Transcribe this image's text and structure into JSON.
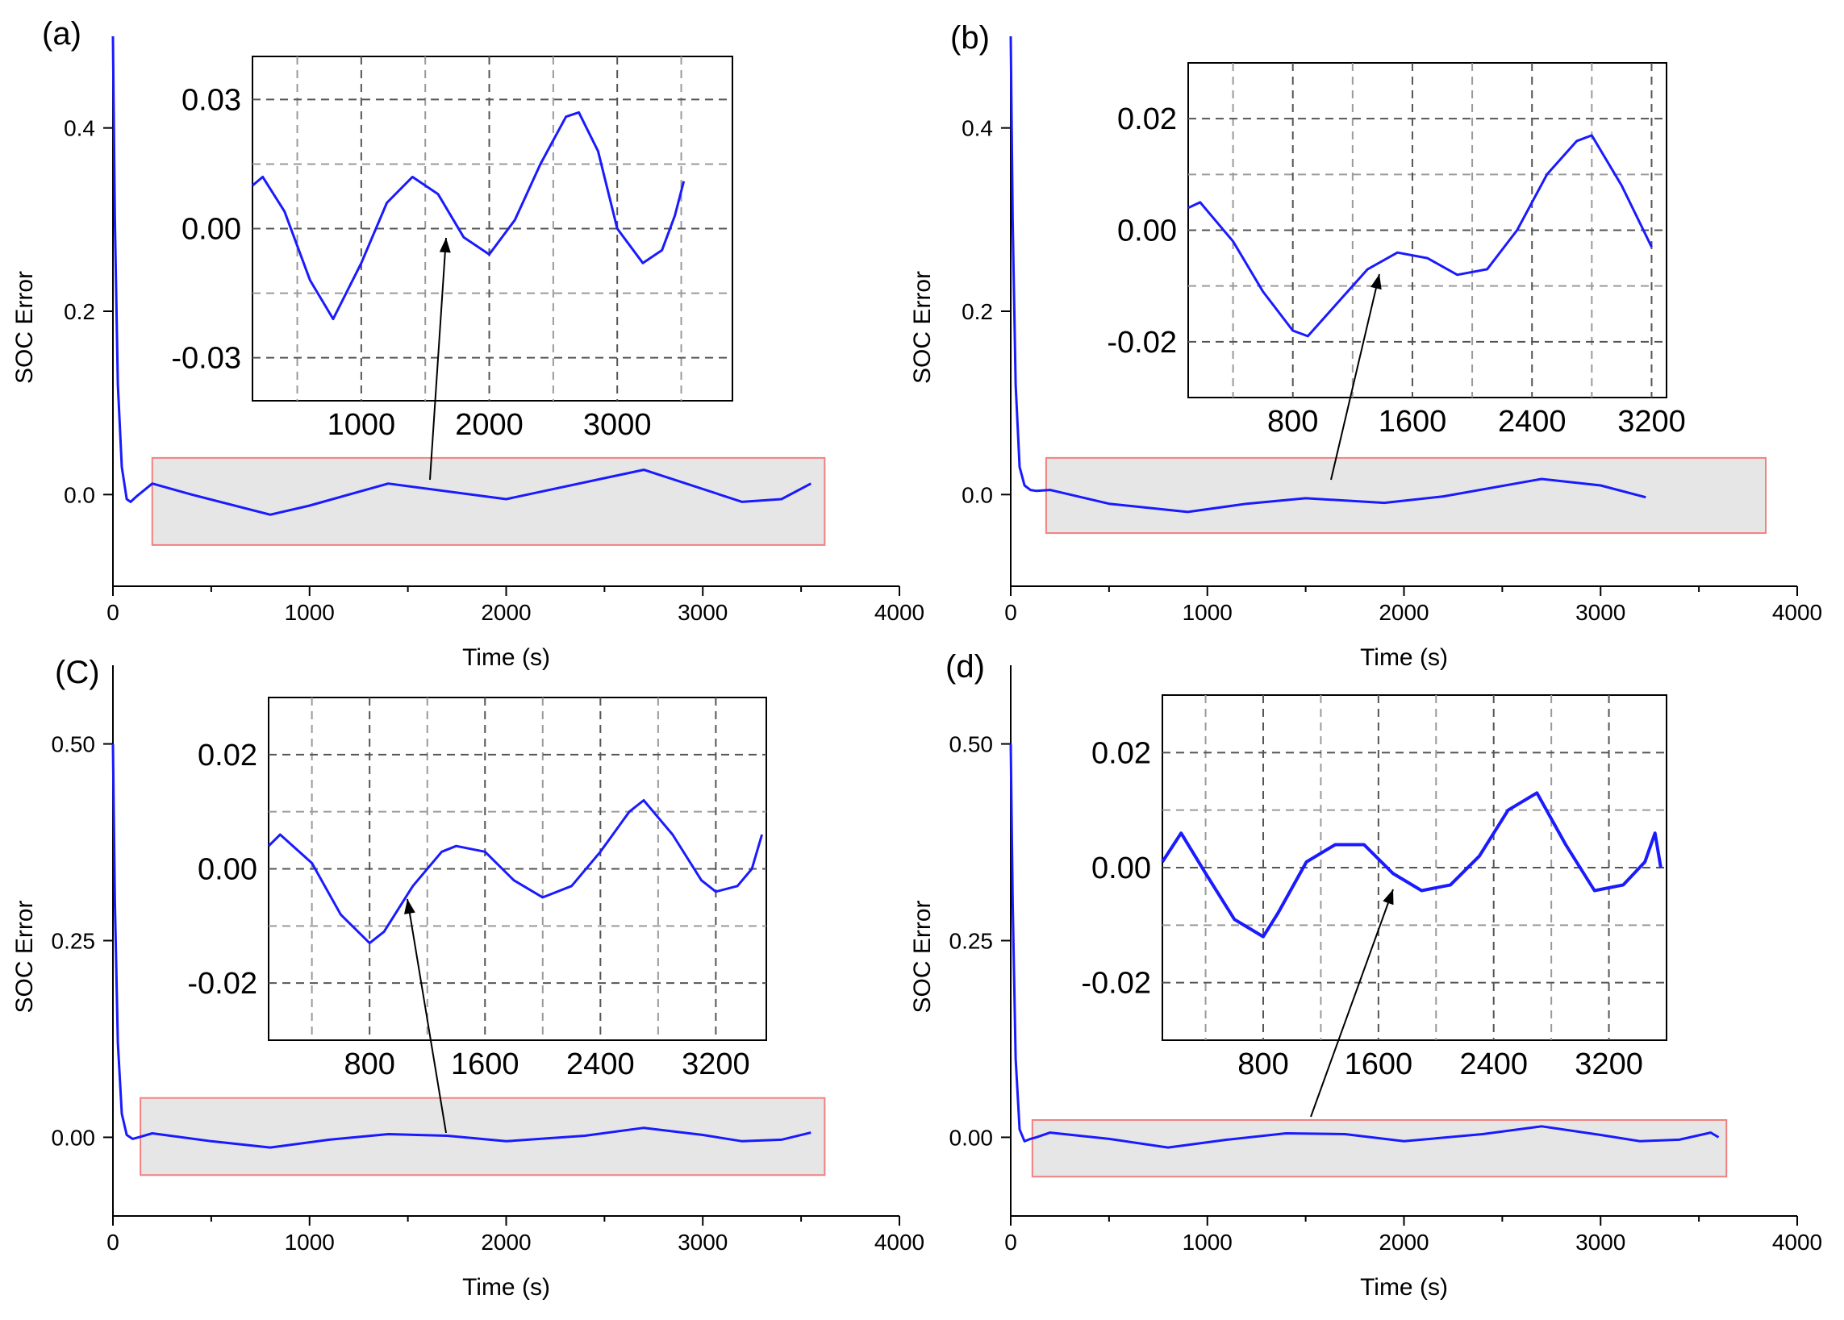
{
  "figure": {
    "colors": {
      "series": "#1a1aff",
      "highlight_fill": "#e6e6e6",
      "highlight_stroke": "#f08080",
      "grid": "#555555",
      "arrow": "#000000"
    }
  },
  "chart_data": [
    {
      "panel": "(a)",
      "type": "line",
      "xlabel": "Time (s)",
      "ylabel": "SOC Error",
      "xlim": [
        0,
        4000
      ],
      "ylim": [
        -0.1,
        0.5
      ],
      "xticks": [
        "0",
        "1000",
        "2000",
        "3000",
        "4000"
      ],
      "yticks": [
        "0.0",
        "0.2",
        "0.4"
      ],
      "ytick_values": [
        0.0,
        0.2,
        0.4
      ],
      "highlight_box_xrange": [
        200,
        3620
      ],
      "highlight_box_yrange": [
        -0.055,
        0.04
      ],
      "series": [
        {
          "name": "SOC Error",
          "x": [
            0,
            10,
            25,
            45,
            70,
            90,
            120,
            200,
            400,
            800,
            1000,
            1400,
            2000,
            2700,
            3200,
            3400,
            3550
          ],
          "y": [
            0.5,
            0.3,
            0.12,
            0.03,
            -0.005,
            -0.008,
            -0.002,
            0.012,
            0.0,
            -0.022,
            -0.012,
            0.012,
            -0.005,
            0.027,
            -0.008,
            -0.005,
            0.012
          ]
        }
      ],
      "inset": {
        "xlim": [
          150,
          3900
        ],
        "ylim": [
          -0.04,
          0.04
        ],
        "xticks": [
          "1000",
          "2000",
          "3000"
        ],
        "xtick_values": [
          1000,
          2000,
          3000
        ],
        "yticks": [
          "-0.03",
          "0.00",
          "0.03"
        ],
        "ytick_values": [
          -0.03,
          0.0,
          0.03
        ],
        "grid_minor_x": [
          500,
          1500,
          2500,
          3500
        ],
        "grid_minor_y": [
          -0.015,
          0.015
        ],
        "series": [
          {
            "x": [
              150,
              230,
              400,
              600,
              780,
              1000,
              1200,
              1400,
              1600,
              1800,
              2000,
              2200,
              2400,
              2600,
              2700,
              2850,
              3000,
              3200,
              3350,
              3450,
              3520
            ],
            "y": [
              0.01,
              0.012,
              0.004,
              -0.012,
              -0.021,
              -0.008,
              0.006,
              0.012,
              0.008,
              -0.002,
              -0.006,
              0.002,
              0.015,
              0.026,
              0.027,
              0.018,
              0.0,
              -0.008,
              -0.005,
              0.003,
              0.011
            ]
          }
        ]
      }
    },
    {
      "panel": "(b)",
      "type": "line",
      "xlabel": "Time (s)",
      "ylabel": "SOC Error",
      "xlim": [
        0,
        4000
      ],
      "ylim": [
        -0.1,
        0.5
      ],
      "xticks": [
        "0",
        "1000",
        "2000",
        "3000",
        "4000"
      ],
      "yticks": [
        "0.0",
        "0.2",
        "0.4"
      ],
      "ytick_values": [
        0.0,
        0.2,
        0.4
      ],
      "highlight_box_xrange": [
        180,
        3840
      ],
      "highlight_box_yrange": [
        -0.042,
        0.04
      ],
      "series": [
        {
          "name": "SOC Error",
          "x": [
            0,
            10,
            25,
            45,
            70,
            100,
            130,
            200,
            500,
            900,
            1200,
            1500,
            1900,
            2200,
            2700,
            3000,
            3230
          ],
          "y": [
            0.5,
            0.3,
            0.12,
            0.03,
            0.01,
            0.005,
            0.004,
            0.005,
            -0.01,
            -0.019,
            -0.01,
            -0.004,
            -0.009,
            -0.002,
            0.017,
            0.01,
            -0.003
          ]
        }
      ],
      "inset": {
        "xlim": [
          100,
          3300
        ],
        "ylim": [
          -0.03,
          0.03
        ],
        "xticks": [
          "800",
          "1600",
          "2400",
          "3200"
        ],
        "xtick_values": [
          800,
          1600,
          2400,
          3200
        ],
        "yticks": [
          "-0.02",
          "0.00",
          "0.02"
        ],
        "ytick_values": [
          -0.02,
          0.0,
          0.02
        ],
        "grid_minor_x": [
          400,
          1200,
          2000,
          2800
        ],
        "grid_minor_y": [
          -0.01,
          0.01
        ],
        "series": [
          {
            "x": [
              100,
              180,
              400,
              600,
              800,
              900,
              1100,
              1300,
              1500,
              1700,
              1900,
              2100,
              2300,
              2500,
              2700,
              2800,
              3000,
              3200
            ],
            "y": [
              0.004,
              0.005,
              -0.002,
              -0.011,
              -0.018,
              -0.019,
              -0.013,
              -0.007,
              -0.004,
              -0.005,
              -0.008,
              -0.007,
              0.0,
              0.01,
              0.016,
              0.017,
              0.008,
              -0.003
            ]
          }
        ]
      }
    },
    {
      "panel": "(C)",
      "type": "line",
      "xlabel": "Time (s)",
      "ylabel": "SOC Error",
      "xlim": [
        0,
        4000
      ],
      "ylim": [
        -0.1,
        0.6
      ],
      "xticks": [
        "0",
        "1000",
        "2000",
        "3000",
        "4000"
      ],
      "yticks": [
        "0.00",
        "0.25",
        "0.50"
      ],
      "ytick_values": [
        0.0,
        0.25,
        0.5
      ],
      "highlight_box_xrange": [
        140,
        3620
      ],
      "highlight_box_yrange": [
        -0.048,
        0.05
      ],
      "series": [
        {
          "name": "SOC Error",
          "x": [
            0,
            10,
            25,
            45,
            70,
            100,
            130,
            200,
            500,
            800,
            1100,
            1400,
            1700,
            2000,
            2400,
            2700,
            3000,
            3200,
            3400,
            3550
          ],
          "y": [
            0.5,
            0.3,
            0.12,
            0.03,
            0.003,
            -0.002,
            0.0,
            0.005,
            -0.005,
            -0.013,
            -0.003,
            0.004,
            0.002,
            -0.005,
            0.002,
            0.012,
            0.003,
            -0.005,
            -0.003,
            0.006
          ]
        }
      ],
      "inset": {
        "xlim": [
          100,
          3550
        ],
        "ylim": [
          -0.03,
          0.03
        ],
        "xticks": [
          "800",
          "1600",
          "2400",
          "3200"
        ],
        "xtick_values": [
          800,
          1600,
          2400,
          3200
        ],
        "yticks": [
          "-0.02",
          "0.00",
          "0.02"
        ],
        "ytick_values": [
          -0.02,
          0.0,
          0.02
        ],
        "grid_minor_x": [
          400,
          1200,
          2000,
          2800
        ],
        "grid_minor_y": [
          -0.01,
          0.01
        ],
        "series": [
          {
            "x": [
              100,
              180,
              400,
              600,
              800,
              900,
              1100,
              1300,
              1400,
              1600,
              1800,
              2000,
              2200,
              2400,
              2600,
              2700,
              2900,
              3100,
              3200,
              3350,
              3450,
              3520
            ],
            "y": [
              0.004,
              0.006,
              0.001,
              -0.008,
              -0.013,
              -0.011,
              -0.003,
              0.003,
              0.004,
              0.003,
              -0.002,
              -0.005,
              -0.003,
              0.003,
              0.01,
              0.012,
              0.006,
              -0.002,
              -0.004,
              -0.003,
              0.0,
              0.006
            ]
          }
        ]
      }
    },
    {
      "panel": "(d)",
      "type": "line",
      "xlabel": "Time (s)",
      "ylabel": "SOC Error",
      "xlim": [
        0,
        4000
      ],
      "ylim": [
        -0.1,
        0.6
      ],
      "xticks": [
        "0",
        "1000",
        "2000",
        "3000",
        "4000"
      ],
      "yticks": [
        "0.00",
        "0.25",
        "0.50"
      ],
      "ytick_values": [
        0.0,
        0.25,
        0.5
      ],
      "highlight_box_xrange": [
        110,
        3640
      ],
      "highlight_box_yrange": [
        -0.05,
        0.022
      ],
      "series": [
        {
          "name": "SOC Error",
          "x": [
            0,
            10,
            25,
            45,
            70,
            100,
            130,
            200,
            500,
            800,
            1100,
            1400,
            1700,
            2000,
            2400,
            2700,
            3000,
            3200,
            3400,
            3560,
            3600
          ],
          "y": [
            0.5,
            0.3,
            0.1,
            0.01,
            -0.005,
            -0.002,
            0.0,
            0.006,
            -0.002,
            -0.013,
            -0.003,
            0.005,
            0.004,
            -0.005,
            0.004,
            0.014,
            0.003,
            -0.005,
            -0.003,
            0.006,
            0.0
          ]
        }
      ],
      "inset": {
        "xlim": [
          100,
          3600
        ],
        "ylim": [
          -0.03,
          0.03
        ],
        "xticks": [
          "800",
          "1600",
          "2400",
          "3200"
        ],
        "xtick_values": [
          800,
          1600,
          2400,
          3200
        ],
        "yticks": [
          "-0.02",
          "0.00",
          "0.02"
        ],
        "ytick_values": [
          -0.02,
          0.0,
          0.02
        ],
        "grid_minor_x": [
          400,
          1200,
          2000,
          2800
        ],
        "grid_minor_y": [
          -0.01,
          0.01
        ],
        "series": [
          {
            "x": [
              100,
              230,
              400,
              600,
              800,
              900,
              1100,
              1300,
              1500,
              1700,
              1900,
              2100,
              2300,
              2500,
              2700,
              2900,
              3100,
              3300,
              3450,
              3520,
              3560
            ],
            "y": [
              0.001,
              0.006,
              -0.001,
              -0.009,
              -0.012,
              -0.008,
              0.001,
              0.004,
              0.004,
              -0.001,
              -0.004,
              -0.003,
              0.002,
              0.01,
              0.013,
              0.004,
              -0.004,
              -0.003,
              0.001,
              0.006,
              0.0
            ]
          }
        ]
      }
    }
  ]
}
